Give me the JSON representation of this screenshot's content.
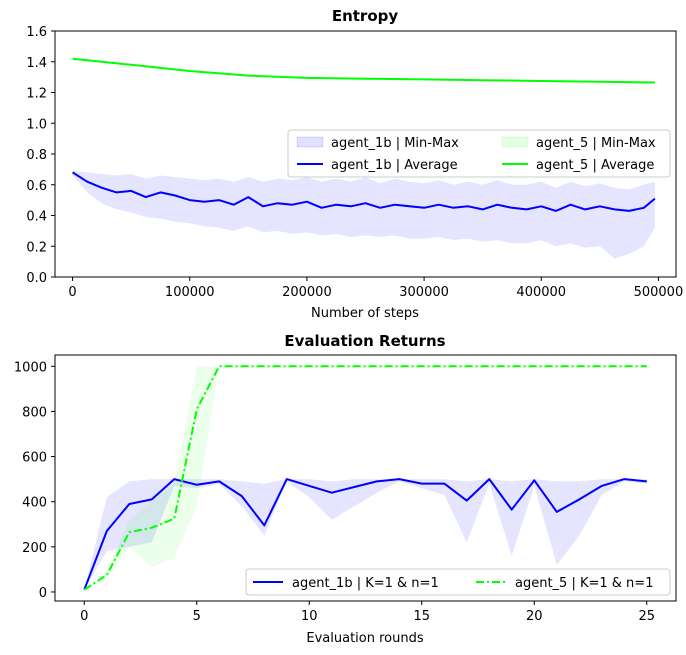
{
  "chart_data": [
    {
      "type": "line",
      "title": "Entropy",
      "xlabel": "Number of steps",
      "ylabel": "",
      "xlim": [
        -15000,
        515000
      ],
      "ylim": [
        0.0,
        1.6
      ],
      "xticks": [
        0,
        100000,
        200000,
        300000,
        400000,
        500000
      ],
      "yticks": [
        0.0,
        0.2,
        0.4,
        0.6,
        0.8,
        1.0,
        1.2,
        1.4,
        1.6
      ],
      "legend": {
        "placement": "center-right",
        "columns": 2
      },
      "series": [
        {
          "name": "agent_1b | Average",
          "band_name": "agent_1b | Min-Max",
          "color": "#0000ff",
          "x": [
            0,
            12500,
            25000,
            37500,
            50000,
            62500,
            75000,
            87500,
            100000,
            112500,
            125000,
            137500,
            150000,
            162500,
            175000,
            187500,
            200000,
            212500,
            225000,
            237500,
            250000,
            262500,
            275000,
            287500,
            300000,
            312500,
            325000,
            337500,
            350000,
            362500,
            375000,
            387500,
            400000,
            412500,
            425000,
            437500,
            450000,
            462500,
            475000,
            487500,
            497000
          ],
          "y": [
            0.68,
            0.62,
            0.58,
            0.55,
            0.56,
            0.52,
            0.55,
            0.53,
            0.5,
            0.49,
            0.5,
            0.47,
            0.52,
            0.46,
            0.48,
            0.47,
            0.49,
            0.45,
            0.47,
            0.46,
            0.48,
            0.45,
            0.47,
            0.46,
            0.45,
            0.47,
            0.45,
            0.46,
            0.44,
            0.47,
            0.45,
            0.44,
            0.46,
            0.43,
            0.47,
            0.44,
            0.46,
            0.44,
            0.43,
            0.45,
            0.51
          ],
          "min": [
            0.66,
            0.55,
            0.48,
            0.44,
            0.42,
            0.39,
            0.38,
            0.36,
            0.35,
            0.33,
            0.32,
            0.3,
            0.33,
            0.29,
            0.3,
            0.28,
            0.29,
            0.27,
            0.28,
            0.26,
            0.27,
            0.26,
            0.27,
            0.25,
            0.25,
            0.26,
            0.24,
            0.25,
            0.23,
            0.24,
            0.22,
            0.22,
            0.24,
            0.2,
            0.22,
            0.19,
            0.2,
            0.12,
            0.15,
            0.2,
            0.32
          ],
          "max": [
            0.69,
            0.68,
            0.67,
            0.66,
            0.67,
            0.64,
            0.66,
            0.65,
            0.64,
            0.63,
            0.64,
            0.62,
            0.65,
            0.62,
            0.64,
            0.63,
            0.65,
            0.62,
            0.64,
            0.62,
            0.65,
            0.61,
            0.64,
            0.62,
            0.61,
            0.63,
            0.6,
            0.62,
            0.6,
            0.63,
            0.6,
            0.6,
            0.62,
            0.58,
            0.62,
            0.59,
            0.61,
            0.58,
            0.57,
            0.6,
            0.62
          ]
        },
        {
          "name": "agent_5 | Average",
          "band_name": "agent_5 | Min-Max",
          "color": "#00ff00",
          "x": [
            0,
            25000,
            50000,
            100000,
            150000,
            200000,
            250000,
            300000,
            350000,
            400000,
            450000,
            497000
          ],
          "y": [
            1.42,
            1.4,
            1.38,
            1.34,
            1.31,
            1.295,
            1.29,
            1.285,
            1.28,
            1.275,
            1.27,
            1.265
          ],
          "min": [
            1.42,
            1.4,
            1.38,
            1.34,
            1.31,
            1.295,
            1.29,
            1.285,
            1.28,
            1.275,
            1.27,
            1.265
          ],
          "max": [
            1.42,
            1.4,
            1.38,
            1.34,
            1.31,
            1.295,
            1.29,
            1.285,
            1.28,
            1.275,
            1.27,
            1.265
          ]
        }
      ]
    },
    {
      "type": "line",
      "title": "Evaluation Returns",
      "xlabel": "Evaluation rounds",
      "ylabel": "",
      "xlim": [
        -1.3,
        26.3
      ],
      "ylim": [
        -40,
        1050
      ],
      "xticks": [
        0,
        5,
        10,
        15,
        20,
        25
      ],
      "yticks": [
        0,
        200,
        400,
        600,
        800,
        1000
      ],
      "legend": {
        "placement": "bottom-right",
        "columns": 2
      },
      "series": [
        {
          "name": "agent_1b | K=1 & n=1",
          "color": "#0000ff",
          "dash": "solid",
          "x": [
            0,
            1,
            2,
            3,
            4,
            5,
            6,
            7,
            8,
            9,
            10,
            11,
            12,
            13,
            14,
            15,
            16,
            17,
            18,
            19,
            20,
            21,
            22,
            23,
            24,
            25
          ],
          "y": [
            10,
            270,
            390,
            410,
            500,
            475,
            490,
            425,
            295,
            500,
            470,
            440,
            465,
            490,
            500,
            480,
            480,
            405,
            500,
            365,
            495,
            355,
            410,
            470,
            500,
            490
          ],
          "min": [
            10,
            180,
            200,
            220,
            470,
            460,
            480,
            380,
            250,
            490,
            420,
            320,
            380,
            440,
            490,
            460,
            430,
            220,
            480,
            160,
            470,
            120,
            250,
            430,
            490,
            480
          ],
          "max": [
            10,
            420,
            490,
            500,
            500,
            500,
            500,
            490,
            480,
            500,
            500,
            490,
            500,
            500,
            500,
            500,
            500,
            490,
            500,
            490,
            500,
            490,
            490,
            500,
            500,
            500
          ]
        },
        {
          "name": "agent_5 | K=1 & n=1",
          "color": "#00ff00",
          "dash": "dashdot",
          "x": [
            0,
            1,
            2,
            3,
            4,
            5,
            6,
            7,
            8,
            9,
            10,
            11,
            12,
            13,
            14,
            15,
            16,
            17,
            18,
            19,
            20,
            21,
            22,
            23,
            24,
            25
          ],
          "y": [
            10,
            75,
            265,
            285,
            325,
            810,
            1000,
            1000,
            1000,
            1000,
            1000,
            1000,
            1000,
            1000,
            1000,
            1000,
            1000,
            1000,
            1000,
            1000,
            1000,
            1000,
            1000,
            1000,
            1000,
            1000
          ],
          "min": [
            10,
            60,
            200,
            110,
            150,
            380,
            1000,
            1000,
            1000,
            1000,
            1000,
            1000,
            1000,
            1000,
            1000,
            1000,
            1000,
            1000,
            1000,
            1000,
            1000,
            1000,
            1000,
            1000,
            1000,
            1000
          ],
          "max": [
            10,
            90,
            320,
            400,
            480,
            1000,
            1000,
            1000,
            1000,
            1000,
            1000,
            1000,
            1000,
            1000,
            1000,
            1000,
            1000,
            1000,
            1000,
            1000,
            1000,
            1000,
            1000,
            1000,
            1000,
            1000
          ]
        }
      ]
    }
  ]
}
